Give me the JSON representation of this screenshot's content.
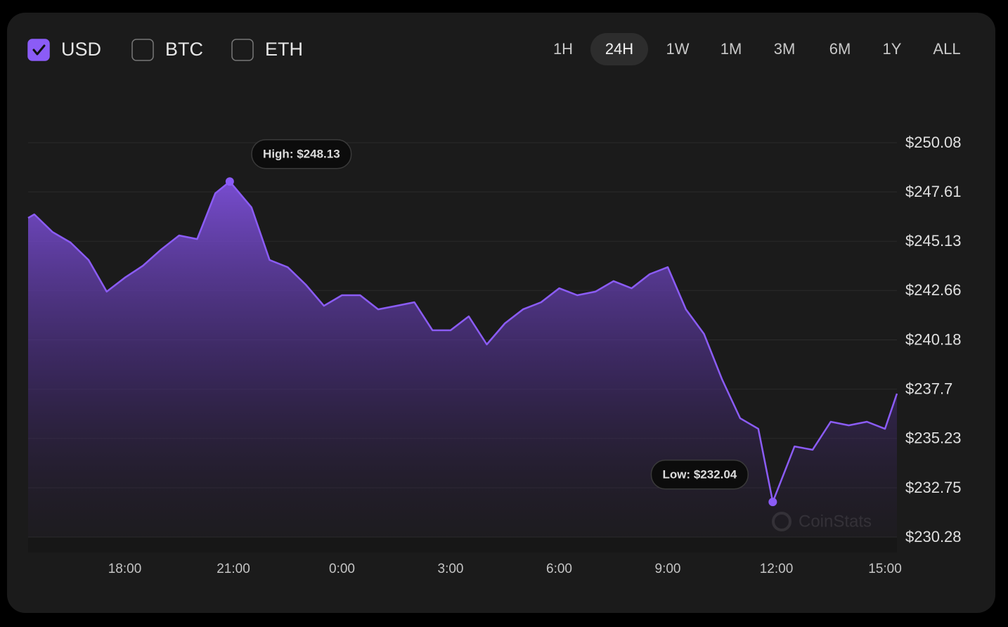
{
  "currencies": [
    {
      "label": "USD",
      "checked": true
    },
    {
      "label": "BTC",
      "checked": false
    },
    {
      "label": "ETH",
      "checked": false
    }
  ],
  "ranges": [
    {
      "label": "1H",
      "selected": false
    },
    {
      "label": "24H",
      "selected": true
    },
    {
      "label": "1W",
      "selected": false
    },
    {
      "label": "1M",
      "selected": false
    },
    {
      "label": "3M",
      "selected": false
    },
    {
      "label": "6M",
      "selected": false
    },
    {
      "label": "1Y",
      "selected": false
    },
    {
      "label": "ALL",
      "selected": false
    }
  ],
  "watermark": "CoinStats",
  "chart_data": {
    "type": "area",
    "color": "#8b5cf6",
    "grid": true,
    "x": [
      15.33,
      15.5,
      16.0,
      16.5,
      17.0,
      17.5,
      18.0,
      18.5,
      19.0,
      19.5,
      20.0,
      20.5,
      20.9,
      21.5,
      22.0,
      22.5,
      23.0,
      23.5,
      24.0,
      24.5,
      25.0,
      25.5,
      26.0,
      26.5,
      27.0,
      27.5,
      28.0,
      28.5,
      29.0,
      29.5,
      30.0,
      30.5,
      31.0,
      31.5,
      32.0,
      32.5,
      33.0,
      33.5,
      34.0,
      34.5,
      35.0,
      35.5,
      35.9,
      36.5,
      37.0,
      37.5,
      38.0,
      38.5,
      39.0,
      39.33
    ],
    "values": [
      246.3,
      246.48,
      245.6,
      245.07,
      244.19,
      242.6,
      243.3,
      243.9,
      244.71,
      245.42,
      245.24,
      247.54,
      248.13,
      246.83,
      244.19,
      243.83,
      242.95,
      241.89,
      242.42,
      242.42,
      241.71,
      241.89,
      242.07,
      240.66,
      240.66,
      241.36,
      239.95,
      241.01,
      241.71,
      242.07,
      242.77,
      242.42,
      242.6,
      243.13,
      242.77,
      243.48,
      243.83,
      241.71,
      240.48,
      238.19,
      236.24,
      235.71,
      232.04,
      234.83,
      234.66,
      236.07,
      235.89,
      236.07,
      235.71,
      237.48
    ],
    "xlim": [
      15.33,
      39.33
    ],
    "ylim": [
      230.28,
      250.08
    ],
    "xticks": [
      {
        "value": 18,
        "label": "18:00"
      },
      {
        "value": 21,
        "label": "21:00"
      },
      {
        "value": 24,
        "label": "0:00"
      },
      {
        "value": 27,
        "label": "3:00"
      },
      {
        "value": 30,
        "label": "6:00"
      },
      {
        "value": 33,
        "label": "9:00"
      },
      {
        "value": 36,
        "label": "12:00"
      },
      {
        "value": 39,
        "label": "15:00"
      }
    ],
    "yticks": [
      {
        "value": 250.08,
        "label": "$250.08"
      },
      {
        "value": 247.61,
        "label": "$247.61"
      },
      {
        "value": 245.13,
        "label": "$245.13"
      },
      {
        "value": 242.66,
        "label": "$242.66"
      },
      {
        "value": 240.18,
        "label": "$240.18"
      },
      {
        "value": 237.7,
        "label": "$237.7"
      },
      {
        "value": 235.23,
        "label": "$235.23"
      },
      {
        "value": 232.75,
        "label": "$232.75"
      },
      {
        "value": 230.28,
        "label": "$230.28"
      }
    ],
    "annotations": [
      {
        "text": "High: $248.13",
        "x": 20.9,
        "y": 248.13,
        "side": "right"
      },
      {
        "text": "Low: $232.04",
        "x": 35.9,
        "y": 232.04,
        "side": "left"
      }
    ]
  }
}
